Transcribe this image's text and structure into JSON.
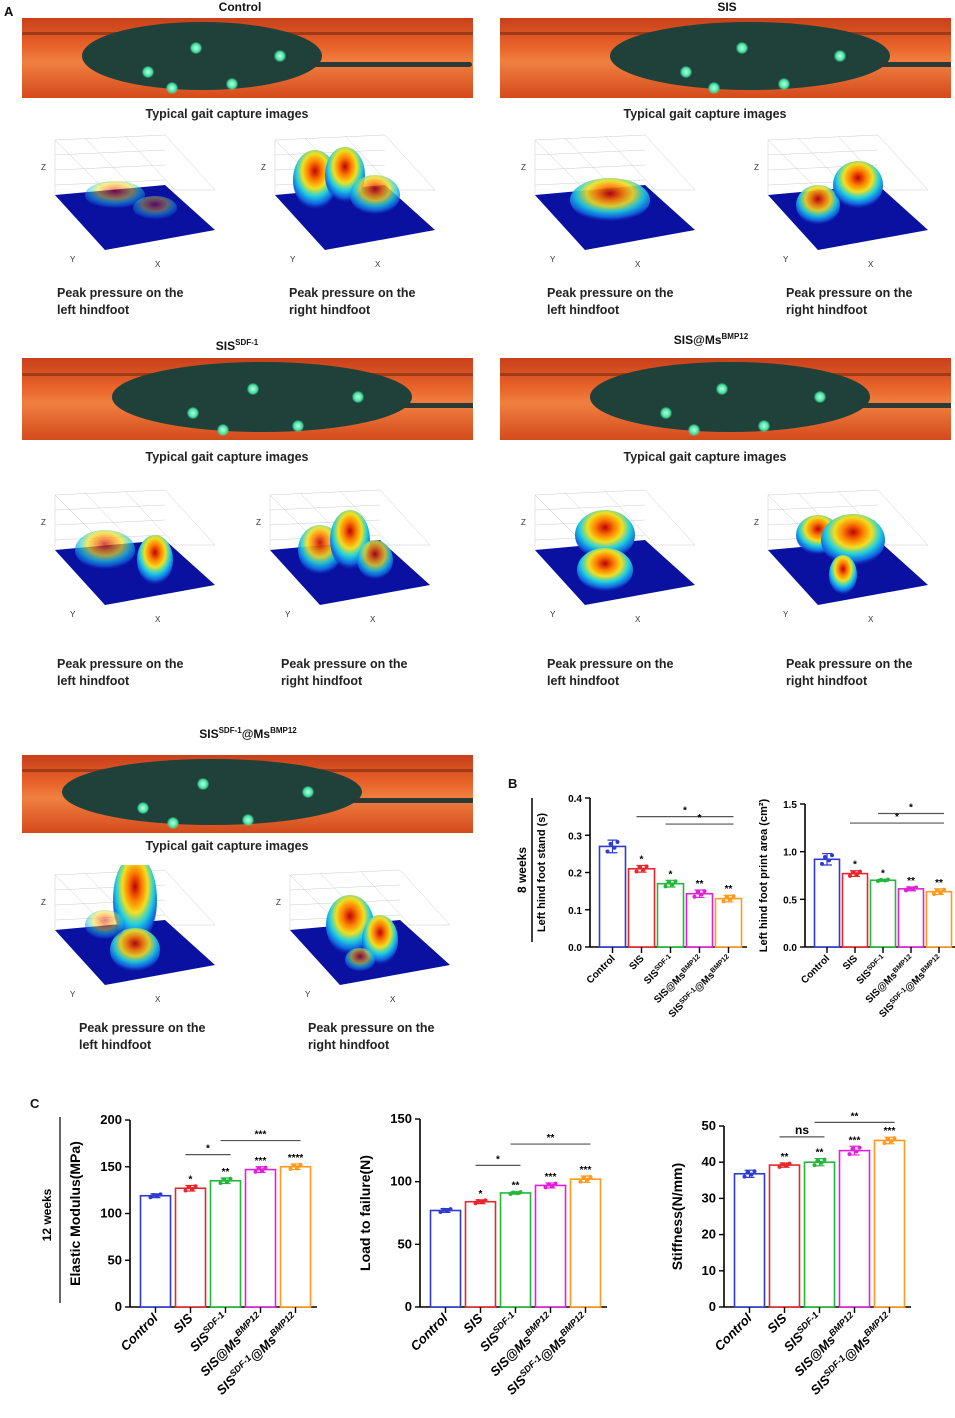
{
  "panel_labels": {
    "a": "A",
    "b": "B",
    "c": "C"
  },
  "panel_a": {
    "gait_caption": "Typical gait capture images",
    "axes": {
      "x": "X",
      "y": "Y",
      "z": "Z"
    },
    "groups": [
      {
        "title": [
          {
            "t": "Control",
            "sup": ""
          }
        ],
        "left_caption": [
          "Peak pressure on the",
          "left hindfoot"
        ],
        "right_caption": [
          "Peak pressure on the",
          "right hindfoot"
        ]
      },
      {
        "title": [
          {
            "t": "SIS",
            "sup": ""
          }
        ],
        "left_caption": [
          "Peak pressure on the",
          "left hindfoot"
        ],
        "right_caption": [
          "Peak pressure on the",
          "right hindfoot"
        ]
      },
      {
        "title": [
          {
            "t": "SIS",
            "sup": "SDF-1"
          }
        ],
        "left_caption": [
          "Peak pressure on the",
          "left hindfoot"
        ],
        "right_caption": [
          "Peak pressure on the",
          "right hindfoot"
        ]
      },
      {
        "title": [
          {
            "t": "SIS@Ms",
            "sup": "BMP12"
          }
        ],
        "left_caption": [
          "Peak pressure on the",
          "left hindfoot"
        ],
        "right_caption": [
          "Peak pressure on the",
          "right hindfoot"
        ]
      },
      {
        "title": [
          {
            "t": "SIS",
            "sup": "SDF-1"
          },
          {
            "t": "@Ms",
            "sup": "BMP12"
          }
        ],
        "left_caption": [
          "Peak pressure on the",
          "left hindfoot"
        ],
        "right_caption": [
          "Peak pressure on the",
          "right hindfoot"
        ]
      }
    ]
  },
  "side_labels": {
    "b": "8 weeks",
    "c": "12 weeks"
  },
  "colors": [
    "#2e3bd1",
    "#e8262b",
    "#22b83a",
    "#e020d8",
    "#ff9a1e"
  ],
  "chart_data": [
    {
      "type": "bar",
      "panel": "B",
      "ylabel": "Left hind foot stand  (s)",
      "ylim": [
        0,
        0.4
      ],
      "ticks": [
        "0.0",
        "0.1",
        "0.2",
        "0.3",
        "0.4"
      ],
      "tick_values": [
        0,
        0.1,
        0.2,
        0.3,
        0.4
      ],
      "categories": [
        [
          {
            "t": "Control",
            "sup": ""
          }
        ],
        [
          {
            "t": "SIS",
            "sup": ""
          }
        ],
        [
          {
            "t": "SIS",
            "sup": "SDF-1"
          }
        ],
        [
          {
            "t": "SIS@Ms",
            "sup": "BMP12"
          }
        ],
        [
          {
            "t": "SIS",
            "sup": "SDF-1"
          },
          {
            "t": "@Ms",
            "sup": "BMP12"
          }
        ]
      ],
      "values": [
        0.27,
        0.21,
        0.17,
        0.143,
        0.13
      ],
      "sd": [
        0.017,
        0.009,
        0.009,
        0.01,
        0.009
      ],
      "stars": [
        "",
        "*",
        "*",
        "**",
        "**"
      ],
      "brackets": [
        {
          "from": 1,
          "to": 4,
          "y": 0.35,
          "label": "*"
        },
        {
          "from": 2,
          "to": 4,
          "y": 0.33,
          "label": "*"
        }
      ]
    },
    {
      "type": "bar",
      "panel": "B",
      "ylabel": "Left hind foot print area  (cm²)",
      "ylim": [
        0,
        1.5
      ],
      "ticks": [
        "0.0",
        "0.5",
        "1.0",
        "1.5"
      ],
      "tick_values": [
        0,
        0.5,
        1.0,
        1.5
      ],
      "categories": [
        [
          {
            "t": "Control",
            "sup": ""
          }
        ],
        [
          {
            "t": "SIS",
            "sup": ""
          }
        ],
        [
          {
            "t": "SIS",
            "sup": "SDF-1"
          }
        ],
        [
          {
            "t": "SIS@Ms",
            "sup": "BMP12"
          }
        ],
        [
          {
            "t": "SIS",
            "sup": "SDF-1"
          },
          {
            "t": "@Ms",
            "sup": "BMP12"
          }
        ]
      ],
      "values": [
        0.92,
        0.77,
        0.7,
        0.61,
        0.58
      ],
      "sd": [
        0.06,
        0.03,
        0.01,
        0.02,
        0.03
      ],
      "stars": [
        "",
        "*",
        "*",
        "**",
        "**"
      ],
      "brackets": [
        {
          "from": 2,
          "to": 4,
          "y": 1.4,
          "label": "*"
        },
        {
          "from": 1,
          "to": 4,
          "y": 1.3,
          "label": "*"
        }
      ]
    },
    {
      "type": "bar",
      "panel": "C",
      "ylabel": "Elastic Modulus(MPa)",
      "ylim": [
        0,
        200
      ],
      "ticks": [
        "0",
        "50",
        "100",
        "150",
        "200"
      ],
      "tick_values": [
        0,
        50,
        100,
        150,
        200
      ],
      "categories": [
        [
          {
            "t": "Control",
            "sup": ""
          }
        ],
        [
          {
            "t": "SIS",
            "sup": ""
          }
        ],
        [
          {
            "t": "SIS",
            "sup": "SDF-1"
          }
        ],
        [
          {
            "t": "SIS@Ms",
            "sup": "BMP12"
          }
        ],
        [
          {
            "t": "SIS",
            "sup": "SDF-1"
          },
          {
            "t": "@Ms",
            "sup": "BMP12"
          }
        ]
      ],
      "values": [
        119,
        127,
        135,
        147,
        150
      ],
      "sd": [
        2,
        3,
        3,
        3,
        3
      ],
      "stars": [
        "",
        "*",
        "**",
        "***",
        "****"
      ],
      "brackets": [
        {
          "from": 1,
          "to": 2,
          "y": 163,
          "label": "*"
        },
        {
          "from": 2,
          "to": 4,
          "y": 178,
          "label": "***"
        }
      ]
    },
    {
      "type": "bar",
      "panel": "C",
      "ylabel": "Load to failure(N)",
      "ylim": [
        0,
        150
      ],
      "ticks": [
        "0",
        "50",
        "100",
        "150"
      ],
      "tick_values": [
        0,
        50,
        100,
        150
      ],
      "categories": [
        [
          {
            "t": "Control",
            "sup": ""
          }
        ],
        [
          {
            "t": "SIS",
            "sup": ""
          }
        ],
        [
          {
            "t": "SIS",
            "sup": "SDF-1"
          }
        ],
        [
          {
            "t": "SIS@Ms",
            "sup": "BMP12"
          }
        ],
        [
          {
            "t": "SIS",
            "sup": "SDF-1"
          },
          {
            "t": "@Ms",
            "sup": "BMP12"
          }
        ]
      ],
      "values": [
        77,
        84,
        91,
        97,
        102
      ],
      "sd": [
        1.5,
        1.5,
        1,
        2,
        2.5
      ],
      "stars": [
        "",
        "*",
        "**",
        "***",
        "***"
      ],
      "brackets": [
        {
          "from": 1,
          "to": 2,
          "y": 113,
          "label": "*"
        },
        {
          "from": 2,
          "to": 4,
          "y": 130,
          "label": "**"
        }
      ]
    },
    {
      "type": "bar",
      "panel": "C",
      "ylabel": "Stiffness(N/mm)",
      "ylim": [
        0,
        50
      ],
      "ticks": [
        "0",
        "10",
        "20",
        "30",
        "40",
        "50"
      ],
      "tick_values": [
        0,
        10,
        20,
        30,
        40,
        50
      ],
      "categories": [
        [
          {
            "t": "Control",
            "sup": ""
          }
        ],
        [
          {
            "t": "SIS",
            "sup": ""
          }
        ],
        [
          {
            "t": "SIS",
            "sup": "SDF-1"
          }
        ],
        [
          {
            "t": "SIS@Ms",
            "sup": "BMP12"
          }
        ],
        [
          {
            "t": "SIS",
            "sup": "SDF-1"
          },
          {
            "t": "@Ms",
            "sup": "BMP12"
          }
        ]
      ],
      "values": [
        36.8,
        39.2,
        40,
        43.2,
        46
      ],
      "sd": [
        1,
        0.6,
        1,
        1.2,
        0.9
      ],
      "stars": [
        "",
        "**",
        "**",
        "***",
        "***"
      ],
      "brackets": [
        {
          "from": 1,
          "to": 2,
          "y": 47,
          "label": "ns"
        },
        {
          "from": 2,
          "to": 4,
          "y": 51,
          "label": "**"
        }
      ]
    }
  ]
}
